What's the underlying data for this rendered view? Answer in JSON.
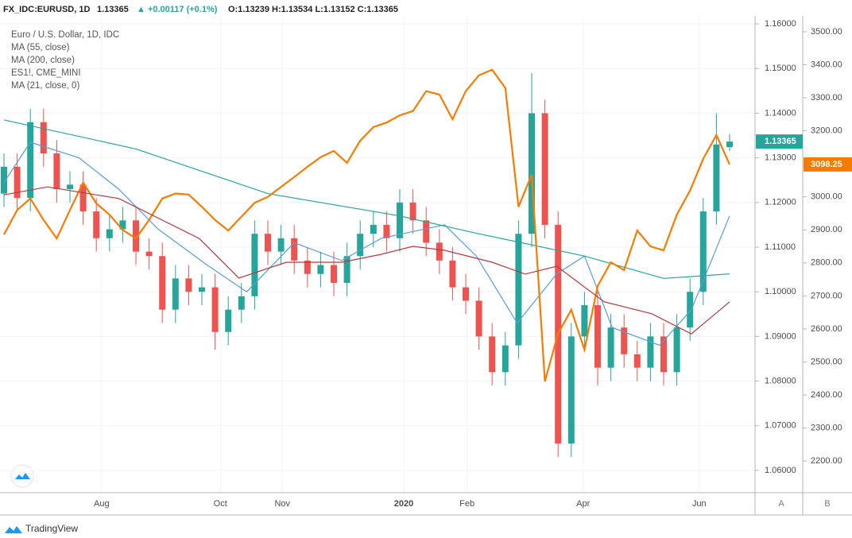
{
  "chart_data": {
    "type": "candlestick",
    "header": {
      "symbol": "FX_IDC:EURUSD, 1D",
      "last": "1.13365",
      "change": "▲ +0.00117 (+0.1%)",
      "ohlc": "O:1.13239 H:1.13534 L:1.13152 C:1.13365"
    },
    "name": "Euro / U.S. Dollar, 1D, IDC",
    "up_color": "#26a69a",
    "down_color": "#ef5350",
    "open": [
      1.122,
      1.128,
      1.121,
      1.138,
      1.131,
      1.123,
      1.124,
      1.118,
      1.112,
      1.114,
      1.116,
      1.109,
      1.108,
      1.096,
      1.103,
      1.1,
      1.101,
      1.091,
      1.096,
      1.099,
      1.113,
      1.109,
      1.112,
      1.107,
      1.104,
      1.106,
      1.102,
      1.108,
      1.113,
      1.115,
      1.112,
      1.12,
      1.116,
      1.111,
      1.107,
      1.101,
      1.098,
      1.09,
      1.082,
      1.088,
      1.113,
      1.14,
      1.115,
      1.066,
      1.09,
      1.097,
      1.083,
      1.092,
      1.086,
      1.083,
      1.09,
      1.082,
      1.092,
      1.1,
      1.118,
      1.13239
    ],
    "high": [
      1.131,
      1.131,
      1.141,
      1.141,
      1.134,
      1.127,
      1.127,
      1.121,
      1.117,
      1.119,
      1.119,
      1.112,
      1.111,
      1.106,
      1.106,
      1.104,
      1.104,
      1.099,
      1.102,
      1.116,
      1.116,
      1.115,
      1.115,
      1.11,
      1.109,
      1.109,
      1.111,
      1.116,
      1.118,
      1.118,
      1.123,
      1.123,
      1.119,
      1.114,
      1.11,
      1.104,
      1.101,
      1.093,
      1.091,
      1.116,
      1.149,
      1.143,
      1.118,
      1.093,
      1.1,
      1.1,
      1.095,
      1.095,
      1.089,
      1.093,
      1.093,
      1.095,
      1.103,
      1.121,
      1.14,
      1.13534
    ],
    "low": [
      1.119,
      1.118,
      1.118,
      1.128,
      1.12,
      1.12,
      1.115,
      1.109,
      1.109,
      1.111,
      1.106,
      1.105,
      1.093,
      1.093,
      1.097,
      1.097,
      1.087,
      1.088,
      1.093,
      1.096,
      1.106,
      1.106,
      1.104,
      1.101,
      1.101,
      1.099,
      1.099,
      1.105,
      1.11,
      1.109,
      1.109,
      1.113,
      1.108,
      1.104,
      1.098,
      1.095,
      1.087,
      1.079,
      1.079,
      1.085,
      1.11,
      1.112,
      1.063,
      1.063,
      1.087,
      1.079,
      1.08,
      1.083,
      1.08,
      1.08,
      1.079,
      1.079,
      1.089,
      1.097,
      1.115,
      1.13152
    ],
    "close": [
      1.128,
      1.121,
      1.138,
      1.131,
      1.123,
      1.124,
      1.118,
      1.112,
      1.114,
      1.116,
      1.109,
      1.108,
      1.096,
      1.103,
      1.1,
      1.101,
      1.091,
      1.096,
      1.099,
      1.113,
      1.109,
      1.112,
      1.107,
      1.104,
      1.106,
      1.102,
      1.108,
      1.113,
      1.115,
      1.112,
      1.12,
      1.116,
      1.111,
      1.107,
      1.101,
      1.098,
      1.09,
      1.082,
      1.088,
      1.113,
      1.14,
      1.115,
      1.066,
      1.09,
      1.097,
      1.083,
      1.092,
      1.086,
      1.083,
      1.09,
      1.082,
      1.092,
      1.1,
      1.118,
      1.133,
      1.13365
    ],
    "overlays": [
      {
        "name": "MA (55, close)",
        "color": "#5b9bd5",
        "x": [
          0,
          2,
          5.7,
          8.7,
          11.7,
          15.4,
          18.4,
          22,
          25.6,
          28.6,
          33.4,
          35.8,
          38.9,
          41.9,
          44,
          46.1,
          49.7,
          52.1,
          55
        ],
        "values": [
          1.1245,
          1.1335,
          1.13,
          1.123,
          1.114,
          1.106,
          1.1,
          1.111,
          1.107,
          1.112,
          1.115,
          1.108,
          1.093,
          1.104,
          1.108,
          1.092,
          1.088,
          1.096,
          1.117
        ]
      },
      {
        "name": "MA (200, close)",
        "color": "#26a69a",
        "x": [
          0,
          10,
          20,
          30,
          36,
          44,
          50,
          55
        ],
        "values": [
          1.1385,
          1.132,
          1.122,
          1.117,
          1.113,
          1.108,
          1.103,
          1.104
        ]
      },
      {
        "name": "ES1!, CME_MINI",
        "color": "#f57c00",
        "axis": "y2",
        "values": [
          2886,
          2960,
          2995,
          2930,
          2874,
          2960,
          3043,
          2980,
          2946,
          2900,
          2874,
          2930,
          2995,
          3010,
          3007,
          2970,
          2930,
          2898,
          2940,
          2982,
          3000,
          3030,
          3060,
          3091,
          3120,
          3139,
          3103,
          3170,
          3211,
          3225,
          3247,
          3260,
          3320,
          3310,
          3235,
          3320,
          3368,
          3385,
          3330,
          2970,
          3067,
          2441,
          2586,
          2658,
          2537,
          2730,
          2802,
          2778,
          2898,
          2850,
          2838,
          2946,
          3019,
          3115,
          3187,
          3098.25
        ]
      },
      {
        "name": "MA (21, close, 0)",
        "color": "#b33a3a",
        "axis": "y2",
        "x": [
          0,
          3.3,
          8.7,
          14.8,
          17.8,
          21.4,
          25.6,
          28.6,
          31,
          33.4,
          37,
          39.5,
          41.9,
          45.5,
          49.1,
          52.1,
          55
        ],
        "values": [
          3006,
          3030,
          2995,
          2874,
          2754,
          2802,
          2802,
          2826,
          2850,
          2838,
          2802,
          2766,
          2790,
          2682,
          2646,
          2585,
          2682
        ]
      }
    ],
    "xticks": [
      {
        "value": 7.4,
        "label": "Aug"
      },
      {
        "value": 16.4,
        "label": "Oct"
      },
      {
        "value": 21.1,
        "label": "Nov"
      },
      {
        "value": 30.3,
        "label": "2020"
      },
      {
        "value": 35.1,
        "label": "Feb"
      },
      {
        "value": 43.9,
        "label": "Apr"
      },
      {
        "value": 52.7,
        "label": "Jun"
      }
    ],
    "ylim": [
      1.055,
      1.1618
    ],
    "yticks": [
      {
        "value": 1.06,
        "label": "1.06000"
      },
      {
        "value": 1.07,
        "label": "1.07000"
      },
      {
        "value": 1.08,
        "label": "1.08000"
      },
      {
        "value": 1.09,
        "label": "1.09000"
      },
      {
        "value": 1.1,
        "label": "1.10000"
      },
      {
        "value": 1.11,
        "label": "1.11000"
      },
      {
        "value": 1.12,
        "label": "1.12000"
      },
      {
        "value": 1.13,
        "label": "1.13000"
      },
      {
        "value": 1.14,
        "label": "1.14000"
      },
      {
        "value": 1.15,
        "label": "1.15000"
      },
      {
        "value": 1.16,
        "label": "1.16000"
      }
    ],
    "y2lim": [
      2104,
      3548
    ],
    "y2ticks": [
      {
        "value": 2200,
        "label": "2200.00"
      },
      {
        "value": 2300,
        "label": "2300.00"
      },
      {
        "value": 2400,
        "label": "2400.00"
      },
      {
        "value": 2500,
        "label": "2500.00"
      },
      {
        "value": 2600,
        "label": "2600.00"
      },
      {
        "value": 2700,
        "label": "2700.00"
      },
      {
        "value": 2800,
        "label": "2800.00"
      },
      {
        "value": 2900,
        "label": "2900.00"
      },
      {
        "value": 3000,
        "label": "3000.00"
      },
      {
        "value": 3100,
        "label": "3100.00"
      },
      {
        "value": 3200,
        "label": "3200.00"
      },
      {
        "value": 3300,
        "label": "3300.00"
      },
      {
        "value": 3400,
        "label": "3400.00"
      },
      {
        "value": 3500,
        "label": "3500.00"
      }
    ],
    "last_label": "1.13365",
    "y2_last_label": "3098.25",
    "grid": true,
    "scale_buttons": [
      "A",
      "B"
    ],
    "footer": "TradingView"
  }
}
